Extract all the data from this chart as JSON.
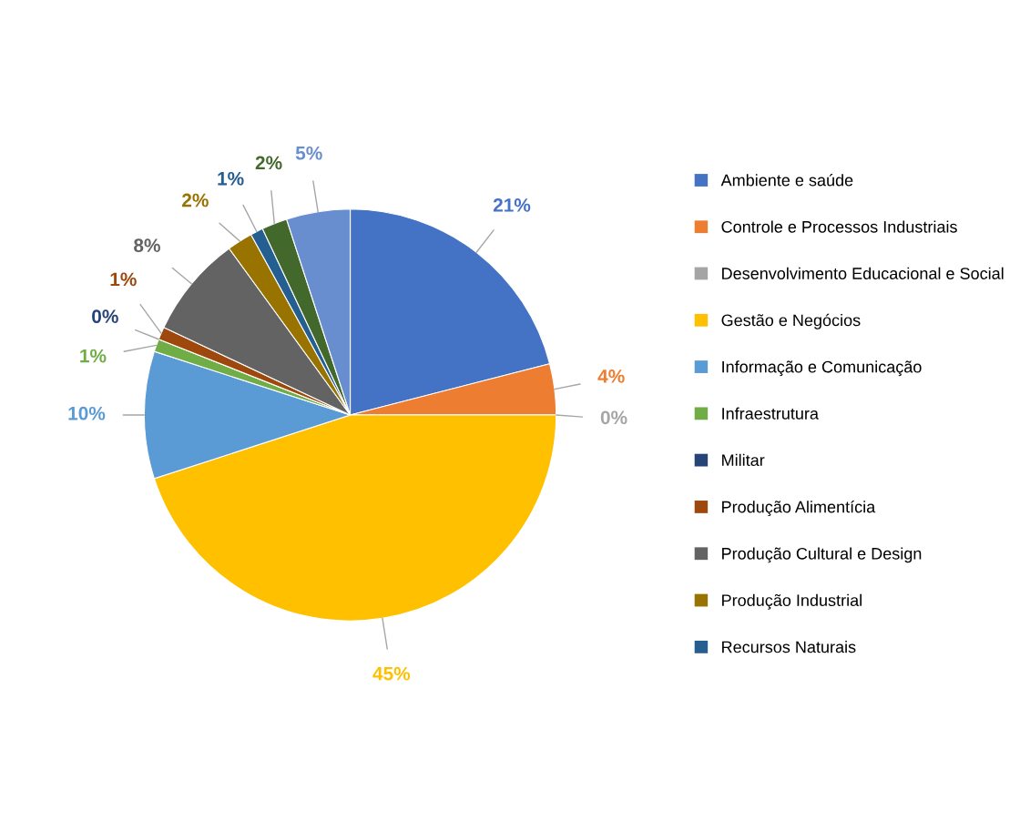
{
  "chart_data": {
    "type": "pie",
    "categories": [
      "Ambiente e saúde",
      "Controle e Processos Industriais",
      "Desenvolvimento Educacional e Social",
      "Gestão e Negócios",
      "Informação e Comunicação",
      "Infraestrutura",
      "Militar",
      "Produção Alimentícia",
      "Produção Cultural e Design",
      "Produção Industrial",
      "Recursos Naturais",
      null,
      null
    ],
    "values": [
      21,
      4,
      0,
      45,
      10,
      1,
      0,
      1,
      8,
      2,
      1,
      2,
      5
    ],
    "colors": [
      "#4472c4",
      "#ed7d31",
      "#a5a5a5",
      "#ffc000",
      "#5b9bd5",
      "#70ad47",
      "#264478",
      "#9e480e",
      "#636363",
      "#997300",
      "#255e91",
      "#43682b",
      "#698ed0"
    ],
    "value_labels": [
      "21%",
      "4%",
      "0%",
      "45%",
      "10%",
      "1%",
      "0%",
      "1%",
      "8%",
      "2%",
      "1%",
      "2%",
      "5%"
    ],
    "legend": "right"
  }
}
